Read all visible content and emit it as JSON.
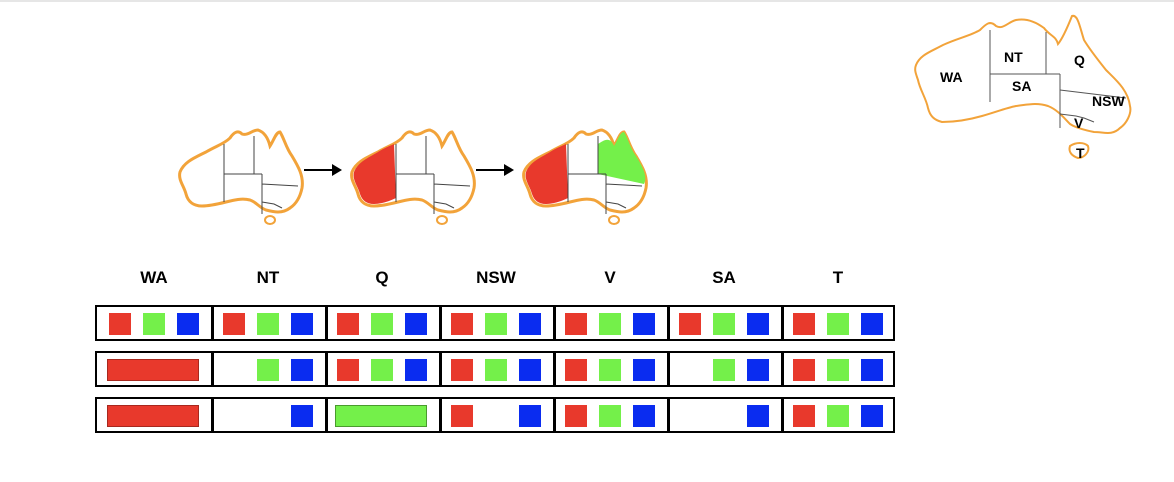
{
  "legend_map": {
    "labels": [
      "WA",
      "NT",
      "SA",
      "Q",
      "NSW",
      "V",
      "T"
    ]
  },
  "variables": [
    "WA",
    "NT",
    "Q",
    "NSW",
    "V",
    "SA",
    "T"
  ],
  "colors": {
    "red": "#e8392c",
    "green": "#74f04a",
    "blue": "#0a2cf0",
    "outline": "#f2a33a"
  },
  "sequence": {
    "steps": [
      {
        "WA": "",
        "Q": ""
      },
      {
        "WA": "red",
        "Q": ""
      },
      {
        "WA": "red",
        "Q": "green"
      }
    ]
  },
  "domains": [
    {
      "WA": [
        "red",
        "green",
        "blue"
      ],
      "NT": [
        "red",
        "green",
        "blue"
      ],
      "Q": [
        "red",
        "green",
        "blue"
      ],
      "NSW": [
        "red",
        "green",
        "blue"
      ],
      "V": [
        "red",
        "green",
        "blue"
      ],
      "SA": [
        "red",
        "green",
        "blue"
      ],
      "T": [
        "red",
        "green",
        "blue"
      ]
    },
    {
      "WA": [
        "red*"
      ],
      "NT": [
        "green",
        "blue"
      ],
      "Q": [
        "red",
        "green",
        "blue"
      ],
      "NSW": [
        "red",
        "green",
        "blue"
      ],
      "V": [
        "red",
        "green",
        "blue"
      ],
      "SA": [
        "green",
        "blue"
      ],
      "T": [
        "red",
        "green",
        "blue"
      ]
    },
    {
      "WA": [
        "red*"
      ],
      "NT": [
        "blue"
      ],
      "Q": [
        "green*"
      ],
      "NSW": [
        "red",
        "blue"
      ],
      "V": [
        "red",
        "green",
        "blue"
      ],
      "SA": [
        "blue"
      ],
      "T": [
        "red",
        "green",
        "blue"
      ]
    }
  ]
}
